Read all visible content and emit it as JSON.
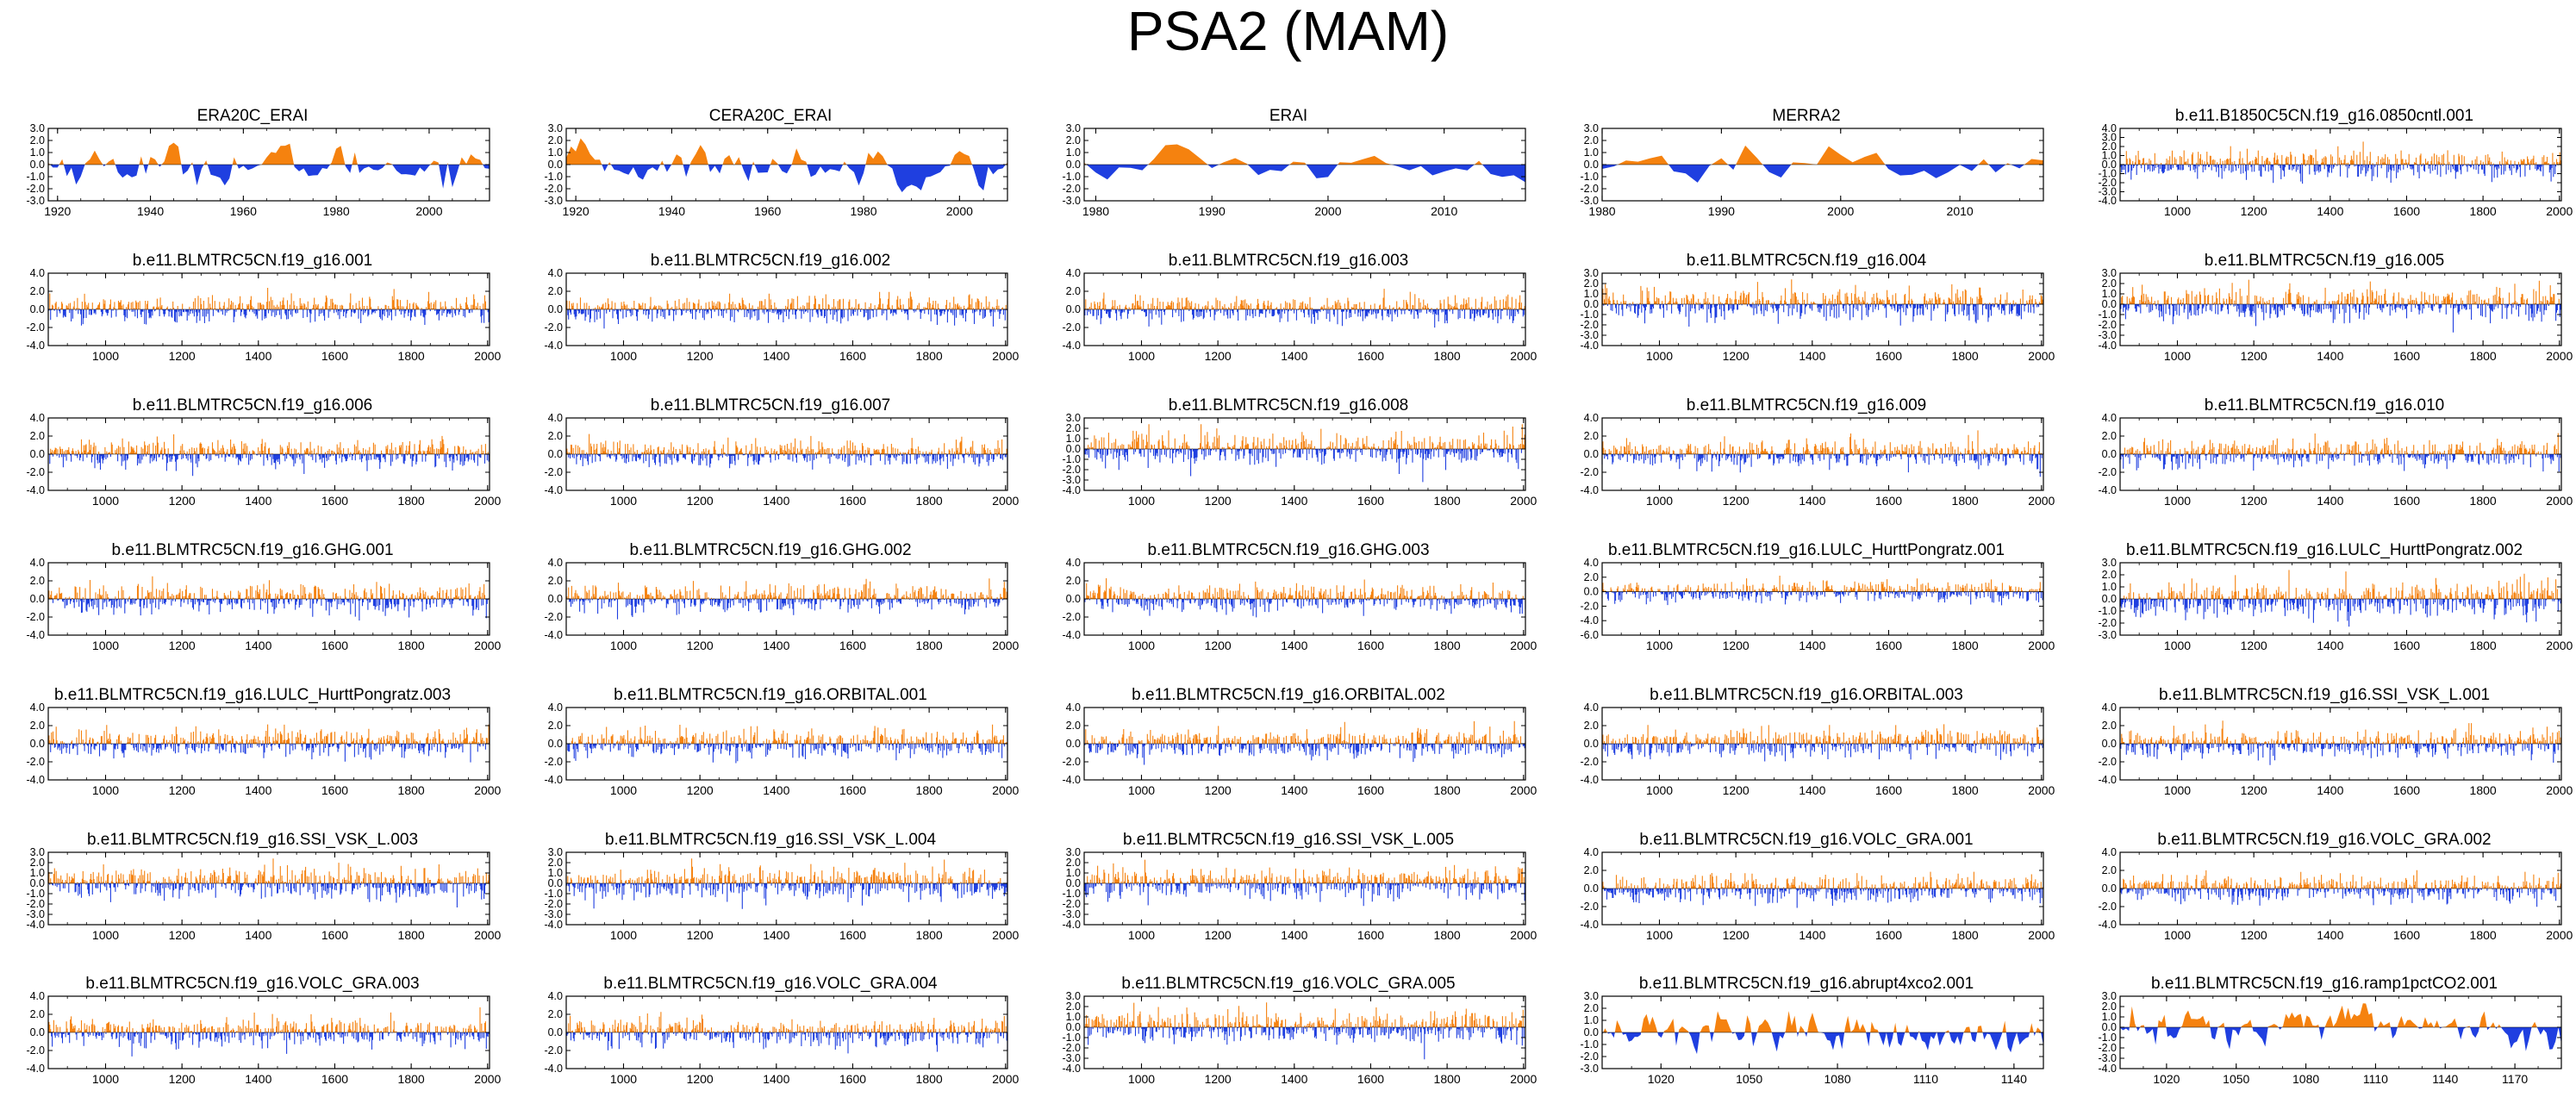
{
  "figure": {
    "title": "PSA2 (MAM)"
  },
  "colors": {
    "positive": "#f5820f",
    "negative": "#1f3fe0",
    "axis": "#000000"
  },
  "chart_data": [
    {
      "title": "ERA20C_ERAI",
      "type": "area",
      "xlim": [
        1918,
        2013
      ],
      "xticks": [
        1920,
        1940,
        1960,
        1980,
        2000
      ],
      "ylim": [
        -3,
        3
      ],
      "yticks": [
        3,
        2,
        1,
        0,
        -1,
        -2,
        -3
      ],
      "ytick_labels": [
        "3.0",
        "2.0",
        "1.0",
        "0.0",
        "-1.0",
        "-2.0",
        "-3.0"
      ],
      "style": "smooth"
    },
    {
      "title": "CERA20C_ERAI",
      "type": "area",
      "xlim": [
        1918,
        2010
      ],
      "xticks": [
        1920,
        1940,
        1960,
        1980,
        2000
      ],
      "ylim": [
        -3,
        3
      ],
      "yticks": [
        3,
        2,
        1,
        0,
        -1,
        -2,
        -3
      ],
      "ytick_labels": [
        "3.0",
        "2.0",
        "1.0",
        "0.0",
        "-1.0",
        "-2.0",
        "-3.0"
      ],
      "style": "smooth"
    },
    {
      "title": "ERAI",
      "type": "area",
      "xlim": [
        1979,
        2017
      ],
      "xticks": [
        1980,
        1990,
        2000,
        2010
      ],
      "ylim": [
        -3,
        3
      ],
      "yticks": [
        3,
        2,
        1,
        0,
        -1,
        -2,
        -3
      ],
      "ytick_labels": [
        "3.0",
        "2.0",
        "1.0",
        "0.0",
        "-1.0",
        "-2.0",
        "-3.0"
      ],
      "style": "smooth"
    },
    {
      "title": "MERRA2",
      "type": "area",
      "xlim": [
        1980,
        2017
      ],
      "xticks": [
        1980,
        1990,
        2000,
        2010
      ],
      "ylim": [
        -3,
        3
      ],
      "yticks": [
        3,
        2,
        1,
        0,
        -1,
        -2,
        -3
      ],
      "ytick_labels": [
        "3.0",
        "2.0",
        "1.0",
        "0.0",
        "-1.0",
        "-2.0",
        "-3.0"
      ],
      "style": "smooth"
    },
    {
      "title": "b.e11.B1850C5CN.f19_g16.0850cntl.001",
      "type": "area",
      "xlim": [
        850,
        2005
      ],
      "xticks": [
        1000,
        1200,
        1400,
        1600,
        1800,
        2000
      ],
      "ylim": [
        -4,
        4
      ],
      "yticks": [
        4,
        3,
        2,
        1,
        0,
        -1,
        -2,
        -3,
        -4
      ],
      "ytick_labels": [
        "4.0",
        "3.0",
        "2.0",
        "1.0",
        "0.0",
        "-1.0",
        "-2.0",
        "-3.0",
        "-4.0"
      ],
      "style": "spiky"
    },
    {
      "title": "b.e11.BLMTRC5CN.f19_g16.001",
      "type": "area",
      "xlim": [
        850,
        2005
      ],
      "xticks": [
        1000,
        1200,
        1400,
        1600,
        1800,
        2000
      ],
      "ylim": [
        -4,
        4
      ],
      "yticks": [
        4,
        2,
        0,
        -2,
        -4
      ],
      "ytick_labels": [
        "4.0",
        "2.0",
        "0.0",
        "-2.0",
        "-4.0"
      ],
      "style": "spiky"
    },
    {
      "title": "b.e11.BLMTRC5CN.f19_g16.002",
      "type": "area",
      "xlim": [
        850,
        2005
      ],
      "xticks": [
        1000,
        1200,
        1400,
        1600,
        1800,
        2000
      ],
      "ylim": [
        -4,
        4
      ],
      "yticks": [
        4,
        2,
        0,
        -2,
        -4
      ],
      "ytick_labels": [
        "4.0",
        "2.0",
        "0.0",
        "-2.0",
        "-4.0"
      ],
      "style": "spiky"
    },
    {
      "title": "b.e11.BLMTRC5CN.f19_g16.003",
      "type": "area",
      "xlim": [
        850,
        2005
      ],
      "xticks": [
        1000,
        1200,
        1400,
        1600,
        1800,
        2000
      ],
      "ylim": [
        -4,
        4
      ],
      "yticks": [
        4,
        2,
        0,
        -2,
        -4
      ],
      "ytick_labels": [
        "4.0",
        "2.0",
        "0.0",
        "-2.0",
        "-4.0"
      ],
      "style": "spiky"
    },
    {
      "title": "b.e11.BLMTRC5CN.f19_g16.004",
      "type": "area",
      "xlim": [
        850,
        2005
      ],
      "xticks": [
        1000,
        1200,
        1400,
        1600,
        1800,
        2000
      ],
      "ylim": [
        -4,
        3
      ],
      "yticks": [
        3,
        2,
        1,
        0,
        -1,
        -2,
        -3,
        -4
      ],
      "ytick_labels": [
        "3.0",
        "2.0",
        "1.0",
        "0.0",
        "-1.0",
        "-2.0",
        "-3.0",
        "-4.0"
      ],
      "style": "spiky"
    },
    {
      "title": "b.e11.BLMTRC5CN.f19_g16.005",
      "type": "area",
      "xlim": [
        850,
        2005
      ],
      "xticks": [
        1000,
        1200,
        1400,
        1600,
        1800,
        2000
      ],
      "ylim": [
        -4,
        3
      ],
      "yticks": [
        3,
        2,
        1,
        0,
        -1,
        -2,
        -3,
        -4
      ],
      "ytick_labels": [
        "3.0",
        "2.0",
        "1.0",
        "0.0",
        "-1.0",
        "-2.0",
        "-3.0",
        "-4.0"
      ],
      "style": "spiky"
    },
    {
      "title": "b.e11.BLMTRC5CN.f19_g16.006",
      "type": "area",
      "xlim": [
        850,
        2005
      ],
      "xticks": [
        1000,
        1200,
        1400,
        1600,
        1800,
        2000
      ],
      "ylim": [
        -4,
        4
      ],
      "yticks": [
        4,
        2,
        0,
        -2,
        -4
      ],
      "ytick_labels": [
        "4.0",
        "2.0",
        "0.0",
        "-2.0",
        "-4.0"
      ],
      "style": "spiky"
    },
    {
      "title": "b.e11.BLMTRC5CN.f19_g16.007",
      "type": "area",
      "xlim": [
        850,
        2005
      ],
      "xticks": [
        1000,
        1200,
        1400,
        1600,
        1800,
        2000
      ],
      "ylim": [
        -4,
        4
      ],
      "yticks": [
        4,
        2,
        0,
        -2,
        -4
      ],
      "ytick_labels": [
        "4.0",
        "2.0",
        "0.0",
        "-2.0",
        "-4.0"
      ],
      "style": "spiky"
    },
    {
      "title": "b.e11.BLMTRC5CN.f19_g16.008",
      "type": "area",
      "xlim": [
        850,
        2005
      ],
      "xticks": [
        1000,
        1200,
        1400,
        1600,
        1800,
        2000
      ],
      "ylim": [
        -4,
        3
      ],
      "yticks": [
        3,
        2,
        1,
        0,
        -1,
        -2,
        -3,
        -4
      ],
      "ytick_labels": [
        "3.0",
        "2.0",
        "1.0",
        "0.0",
        "-1.0",
        "-2.0",
        "-3.0",
        "-4.0"
      ],
      "style": "spiky"
    },
    {
      "title": "b.e11.BLMTRC5CN.f19_g16.009",
      "type": "area",
      "xlim": [
        850,
        2005
      ],
      "xticks": [
        1000,
        1200,
        1400,
        1600,
        1800,
        2000
      ],
      "ylim": [
        -4,
        4
      ],
      "yticks": [
        4,
        2,
        0,
        -2,
        -4
      ],
      "ytick_labels": [
        "4.0",
        "2.0",
        "0.0",
        "-2.0",
        "-4.0"
      ],
      "style": "spiky"
    },
    {
      "title": "b.e11.BLMTRC5CN.f19_g16.010",
      "type": "area",
      "xlim": [
        850,
        2005
      ],
      "xticks": [
        1000,
        1200,
        1400,
        1600,
        1800,
        2000
      ],
      "ylim": [
        -4,
        4
      ],
      "yticks": [
        4,
        2,
        0,
        -2,
        -4
      ],
      "ytick_labels": [
        "4.0",
        "2.0",
        "0.0",
        "-2.0",
        "-4.0"
      ],
      "style": "spiky"
    },
    {
      "title": "b.e11.BLMTRC5CN.f19_g16.GHG.001",
      "type": "area",
      "xlim": [
        850,
        2005
      ],
      "xticks": [
        1000,
        1200,
        1400,
        1600,
        1800,
        2000
      ],
      "ylim": [
        -4,
        4
      ],
      "yticks": [
        4,
        2,
        0,
        -2,
        -4
      ],
      "ytick_labels": [
        "4.0",
        "2.0",
        "0.0",
        "-2.0",
        "-4.0"
      ],
      "style": "spiky"
    },
    {
      "title": "b.e11.BLMTRC5CN.f19_g16.GHG.002",
      "type": "area",
      "xlim": [
        850,
        2005
      ],
      "xticks": [
        1000,
        1200,
        1400,
        1600,
        1800,
        2000
      ],
      "ylim": [
        -4,
        4
      ],
      "yticks": [
        4,
        2,
        0,
        -2,
        -4
      ],
      "ytick_labels": [
        "4.0",
        "2.0",
        "0.0",
        "-2.0",
        "-4.0"
      ],
      "style": "spiky"
    },
    {
      "title": "b.e11.BLMTRC5CN.f19_g16.GHG.003",
      "type": "area",
      "xlim": [
        850,
        2005
      ],
      "xticks": [
        1000,
        1200,
        1400,
        1600,
        1800,
        2000
      ],
      "ylim": [
        -4,
        4
      ],
      "yticks": [
        4,
        2,
        0,
        -2,
        -4
      ],
      "ytick_labels": [
        "4.0",
        "2.0",
        "0.0",
        "-2.0",
        "-4.0"
      ],
      "style": "spiky"
    },
    {
      "title": "b.e11.BLMTRC5CN.f19_g16.LULC_HurttPongratz.001",
      "type": "area",
      "xlim": [
        850,
        2005
      ],
      "xticks": [
        1000,
        1200,
        1400,
        1600,
        1800,
        2000
      ],
      "ylim": [
        -6,
        4
      ],
      "yticks": [
        4,
        2,
        0,
        -2,
        -4,
        -6
      ],
      "ytick_labels": [
        "4.0",
        "2.0",
        "0.0",
        "-2.0",
        "-4.0",
        "-6.0"
      ],
      "style": "spiky"
    },
    {
      "title": "b.e11.BLMTRC5CN.f19_g16.LULC_HurttPongratz.002",
      "type": "area",
      "xlim": [
        850,
        2005
      ],
      "xticks": [
        1000,
        1200,
        1400,
        1600,
        1800,
        2000
      ],
      "ylim": [
        -3,
        3
      ],
      "yticks": [
        3,
        2,
        1,
        0,
        -1,
        -2,
        -3
      ],
      "ytick_labels": [
        "3.0",
        "2.0",
        "1.0",
        "0.0",
        "-1.0",
        "-2.0",
        "-3.0"
      ],
      "style": "spiky"
    },
    {
      "title": "b.e11.BLMTRC5CN.f19_g16.LULC_HurttPongratz.003",
      "type": "area",
      "xlim": [
        850,
        2005
      ],
      "xticks": [
        1000,
        1200,
        1400,
        1600,
        1800,
        2000
      ],
      "ylim": [
        -4,
        4
      ],
      "yticks": [
        4,
        2,
        0,
        -2,
        -4
      ],
      "ytick_labels": [
        "4.0",
        "2.0",
        "0.0",
        "-2.0",
        "-4.0"
      ],
      "style": "spiky"
    },
    {
      "title": "b.e11.BLMTRC5CN.f19_g16.ORBITAL.001",
      "type": "area",
      "xlim": [
        850,
        2005
      ],
      "xticks": [
        1000,
        1200,
        1400,
        1600,
        1800,
        2000
      ],
      "ylim": [
        -4,
        4
      ],
      "yticks": [
        4,
        2,
        0,
        -2,
        -4
      ],
      "ytick_labels": [
        "4.0",
        "2.0",
        "0.0",
        "-2.0",
        "-4.0"
      ],
      "style": "spiky"
    },
    {
      "title": "b.e11.BLMTRC5CN.f19_g16.ORBITAL.002",
      "type": "area",
      "xlim": [
        850,
        2005
      ],
      "xticks": [
        1000,
        1200,
        1400,
        1600,
        1800,
        2000
      ],
      "ylim": [
        -4,
        4
      ],
      "yticks": [
        4,
        2,
        0,
        -2,
        -4
      ],
      "ytick_labels": [
        "4.0",
        "2.0",
        "0.0",
        "-2.0",
        "-4.0"
      ],
      "style": "spiky"
    },
    {
      "title": "b.e11.BLMTRC5CN.f19_g16.ORBITAL.003",
      "type": "area",
      "xlim": [
        850,
        2005
      ],
      "xticks": [
        1000,
        1200,
        1400,
        1600,
        1800,
        2000
      ],
      "ylim": [
        -4,
        4
      ],
      "yticks": [
        4,
        2,
        0,
        -2,
        -4
      ],
      "ytick_labels": [
        "4.0",
        "2.0",
        "0.0",
        "-2.0",
        "-4.0"
      ],
      "style": "spiky"
    },
    {
      "title": "b.e11.BLMTRC5CN.f19_g16.SSI_VSK_L.001",
      "type": "area",
      "xlim": [
        850,
        2005
      ],
      "xticks": [
        1000,
        1200,
        1400,
        1600,
        1800,
        2000
      ],
      "ylim": [
        -4,
        4
      ],
      "yticks": [
        4,
        2,
        0,
        -2,
        -4
      ],
      "ytick_labels": [
        "4.0",
        "2.0",
        "0.0",
        "-2.0",
        "-4.0"
      ],
      "style": "spiky"
    },
    {
      "title": "b.e11.BLMTRC5CN.f19_g16.SSI_VSK_L.003",
      "type": "area",
      "xlim": [
        850,
        2005
      ],
      "xticks": [
        1000,
        1200,
        1400,
        1600,
        1800,
        2000
      ],
      "ylim": [
        -4,
        3
      ],
      "yticks": [
        3,
        2,
        1,
        0,
        -1,
        -2,
        -3,
        -4
      ],
      "ytick_labels": [
        "3.0",
        "2.0",
        "1.0",
        "0.0",
        "-1.0",
        "-2.0",
        "-3.0",
        "-4.0"
      ],
      "style": "spiky"
    },
    {
      "title": "b.e11.BLMTRC5CN.f19_g16.SSI_VSK_L.004",
      "type": "area",
      "xlim": [
        850,
        2005
      ],
      "xticks": [
        1000,
        1200,
        1400,
        1600,
        1800,
        2000
      ],
      "ylim": [
        -4,
        3
      ],
      "yticks": [
        3,
        2,
        1,
        0,
        -1,
        -2,
        -3,
        -4
      ],
      "ytick_labels": [
        "3.0",
        "2.0",
        "1.0",
        "0.0",
        "-1.0",
        "-2.0",
        "-3.0",
        "-4.0"
      ],
      "style": "spiky"
    },
    {
      "title": "b.e11.BLMTRC5CN.f19_g16.SSI_VSK_L.005",
      "type": "area",
      "xlim": [
        850,
        2005
      ],
      "xticks": [
        1000,
        1200,
        1400,
        1600,
        1800,
        2000
      ],
      "ylim": [
        -4,
        3
      ],
      "yticks": [
        3,
        2,
        1,
        0,
        -1,
        -2,
        -3,
        -4
      ],
      "ytick_labels": [
        "3.0",
        "2.0",
        "1.0",
        "0.0",
        "-1.0",
        "-2.0",
        "-3.0",
        "-4.0"
      ],
      "style": "spiky"
    },
    {
      "title": "b.e11.BLMTRC5CN.f19_g16.VOLC_GRA.001",
      "type": "area",
      "xlim": [
        850,
        2005
      ],
      "xticks": [
        1000,
        1200,
        1400,
        1600,
        1800,
        2000
      ],
      "ylim": [
        -4,
        4
      ],
      "yticks": [
        4,
        2,
        0,
        -2,
        -4
      ],
      "ytick_labels": [
        "4.0",
        "2.0",
        "0.0",
        "-2.0",
        "-4.0"
      ],
      "style": "spiky"
    },
    {
      "title": "b.e11.BLMTRC5CN.f19_g16.VOLC_GRA.002",
      "type": "area",
      "xlim": [
        850,
        2005
      ],
      "xticks": [
        1000,
        1200,
        1400,
        1600,
        1800,
        2000
      ],
      "ylim": [
        -4,
        4
      ],
      "yticks": [
        4,
        2,
        0,
        -2,
        -4
      ],
      "ytick_labels": [
        "4.0",
        "2.0",
        "0.0",
        "-2.0",
        "-4.0"
      ],
      "style": "spiky"
    },
    {
      "title": "b.e11.BLMTRC5CN.f19_g16.VOLC_GRA.003",
      "type": "area",
      "xlim": [
        850,
        2005
      ],
      "xticks": [
        1000,
        1200,
        1400,
        1600,
        1800,
        2000
      ],
      "ylim": [
        -4,
        4
      ],
      "yticks": [
        4,
        2,
        0,
        -2,
        -4
      ],
      "ytick_labels": [
        "4.0",
        "2.0",
        "0.0",
        "-2.0",
        "-4.0"
      ],
      "style": "spiky"
    },
    {
      "title": "b.e11.BLMTRC5CN.f19_g16.VOLC_GRA.004",
      "type": "area",
      "xlim": [
        850,
        2005
      ],
      "xticks": [
        1000,
        1200,
        1400,
        1600,
        1800,
        2000
      ],
      "ylim": [
        -4,
        4
      ],
      "yticks": [
        4,
        2,
        0,
        -2,
        -4
      ],
      "ytick_labels": [
        "4.0",
        "2.0",
        "0.0",
        "-2.0",
        "-4.0"
      ],
      "style": "spiky"
    },
    {
      "title": "b.e11.BLMTRC5CN.f19_g16.VOLC_GRA.005",
      "type": "area",
      "xlim": [
        850,
        2005
      ],
      "xticks": [
        1000,
        1200,
        1400,
        1600,
        1800,
        2000
      ],
      "ylim": [
        -4,
        3
      ],
      "yticks": [
        3,
        2,
        1,
        0,
        -1,
        -2,
        -3,
        -4
      ],
      "ytick_labels": [
        "3.0",
        "2.0",
        "1.0",
        "0.0",
        "-1.0",
        "-2.0",
        "-3.0",
        "-4.0"
      ],
      "style": "spiky"
    },
    {
      "title": "b.e11.BLMTRC5CN.f19_g16.abrupt4xco2.001",
      "type": "area",
      "xlim": [
        1000,
        1150
      ],
      "xticks": [
        1020,
        1050,
        1080,
        1110,
        1140
      ],
      "ylim": [
        -3,
        3
      ],
      "yticks": [
        3,
        2,
        1,
        0,
        -1,
        -2,
        -3
      ],
      "ytick_labels": [
        "3.0",
        "2.0",
        "1.0",
        "0.0",
        "-1.0",
        "-2.0",
        "-3.0"
      ],
      "style": "medium"
    },
    {
      "title": "b.e11.BLMTRC5CN.f19_g16.ramp1pctCO2.001",
      "type": "area",
      "xlim": [
        1000,
        1190
      ],
      "xticks": [
        1020,
        1050,
        1080,
        1110,
        1140,
        1170
      ],
      "ylim": [
        -4,
        3
      ],
      "yticks": [
        3,
        2,
        1,
        0,
        -1,
        -2,
        -3,
        -4
      ],
      "ytick_labels": [
        "3.0",
        "2.0",
        "1.0",
        "0.0",
        "-1.0",
        "-2.0",
        "-3.0",
        "-4.0"
      ],
      "style": "medium"
    }
  ]
}
